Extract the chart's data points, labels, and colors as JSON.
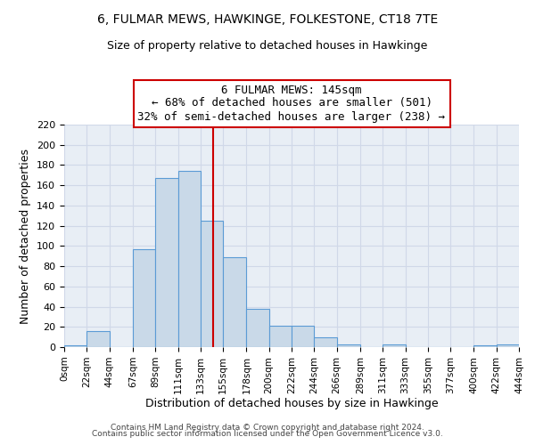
{
  "title": "6, FULMAR MEWS, HAWKINGE, FOLKESTONE, CT18 7TE",
  "subtitle": "Size of property relative to detached houses in Hawkinge",
  "xlabel": "Distribution of detached houses by size in Hawkinge",
  "ylabel": "Number of detached properties",
  "bin_edges": [
    0,
    22,
    44,
    67,
    89,
    111,
    133,
    155,
    178,
    200,
    222,
    244,
    266,
    289,
    311,
    333,
    355,
    377,
    400,
    422,
    444
  ],
  "bar_heights": [
    2,
    16,
    0,
    97,
    167,
    174,
    125,
    89,
    38,
    21,
    21,
    10,
    3,
    0,
    3,
    0,
    0,
    0,
    2,
    3
  ],
  "bar_color": "#c9d9e8",
  "bar_edge_color": "#5b9bd5",
  "vline_x": 145,
  "vline_color": "#cc0000",
  "annotation_title": "6 FULMAR MEWS: 145sqm",
  "annotation_line1": "← 68% of detached houses are smaller (501)",
  "annotation_line2": "32% of semi-detached houses are larger (238) →",
  "annotation_box_edge": "#cc0000",
  "ylim": [
    0,
    220
  ],
  "yticks": [
    0,
    20,
    40,
    60,
    80,
    100,
    120,
    140,
    160,
    180,
    200,
    220
  ],
  "xtick_labels": [
    "0sqm",
    "22sqm",
    "44sqm",
    "67sqm",
    "89sqm",
    "111sqm",
    "133sqm",
    "155sqm",
    "178sqm",
    "200sqm",
    "222sqm",
    "244sqm",
    "266sqm",
    "289sqm",
    "311sqm",
    "333sqm",
    "355sqm",
    "377sqm",
    "400sqm",
    "422sqm",
    "444sqm"
  ],
  "footer1": "Contains HM Land Registry data © Crown copyright and database right 2024.",
  "footer2": "Contains public sector information licensed under the Open Government Licence v3.0.",
  "background_color": "#ffffff",
  "grid_color": "#d0d8e8",
  "axes_bg_color": "#e8eef5"
}
